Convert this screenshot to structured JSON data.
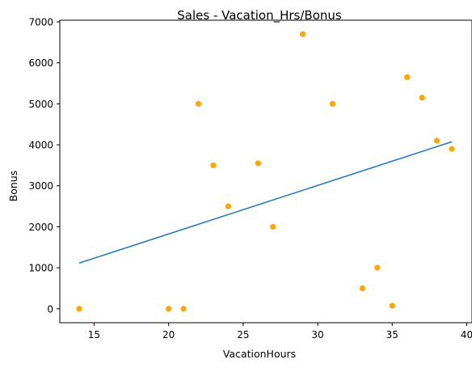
{
  "chart_data": {
    "type": "scatter",
    "title": "Sales - Vacation_Hrs/Bonus",
    "xlabel": "VacationHours",
    "ylabel": "Bonus",
    "xlim": [
      12.7,
      40.3
    ],
    "ylim": [
      -340,
      7040
    ],
    "xticks": [
      15,
      20,
      25,
      30,
      35,
      40
    ],
    "yticks": [
      0,
      1000,
      2000,
      3000,
      4000,
      5000,
      6000,
      7000
    ],
    "grid": false,
    "series": [
      {
        "kind": "scatter",
        "color": "#ffa500",
        "points": [
          {
            "x": 14,
            "y": 0
          },
          {
            "x": 20,
            "y": 0
          },
          {
            "x": 21,
            "y": 0
          },
          {
            "x": 22,
            "y": 5000
          },
          {
            "x": 23,
            "y": 3500
          },
          {
            "x": 24,
            "y": 2500
          },
          {
            "x": 26,
            "y": 3550
          },
          {
            "x": 27,
            "y": 2000
          },
          {
            "x": 29,
            "y": 6700
          },
          {
            "x": 31,
            "y": 5000
          },
          {
            "x": 33,
            "y": 500
          },
          {
            "x": 34,
            "y": 1000
          },
          {
            "x": 35,
            "y": 75
          },
          {
            "x": 36,
            "y": 5650
          },
          {
            "x": 37,
            "y": 5150
          },
          {
            "x": 38,
            "y": 4100
          },
          {
            "x": 39,
            "y": 3900
          }
        ]
      },
      {
        "kind": "line",
        "color": "#1f77b4",
        "points": [
          {
            "x": 14,
            "y": 1115
          },
          {
            "x": 39,
            "y": 4075
          }
        ]
      }
    ]
  }
}
